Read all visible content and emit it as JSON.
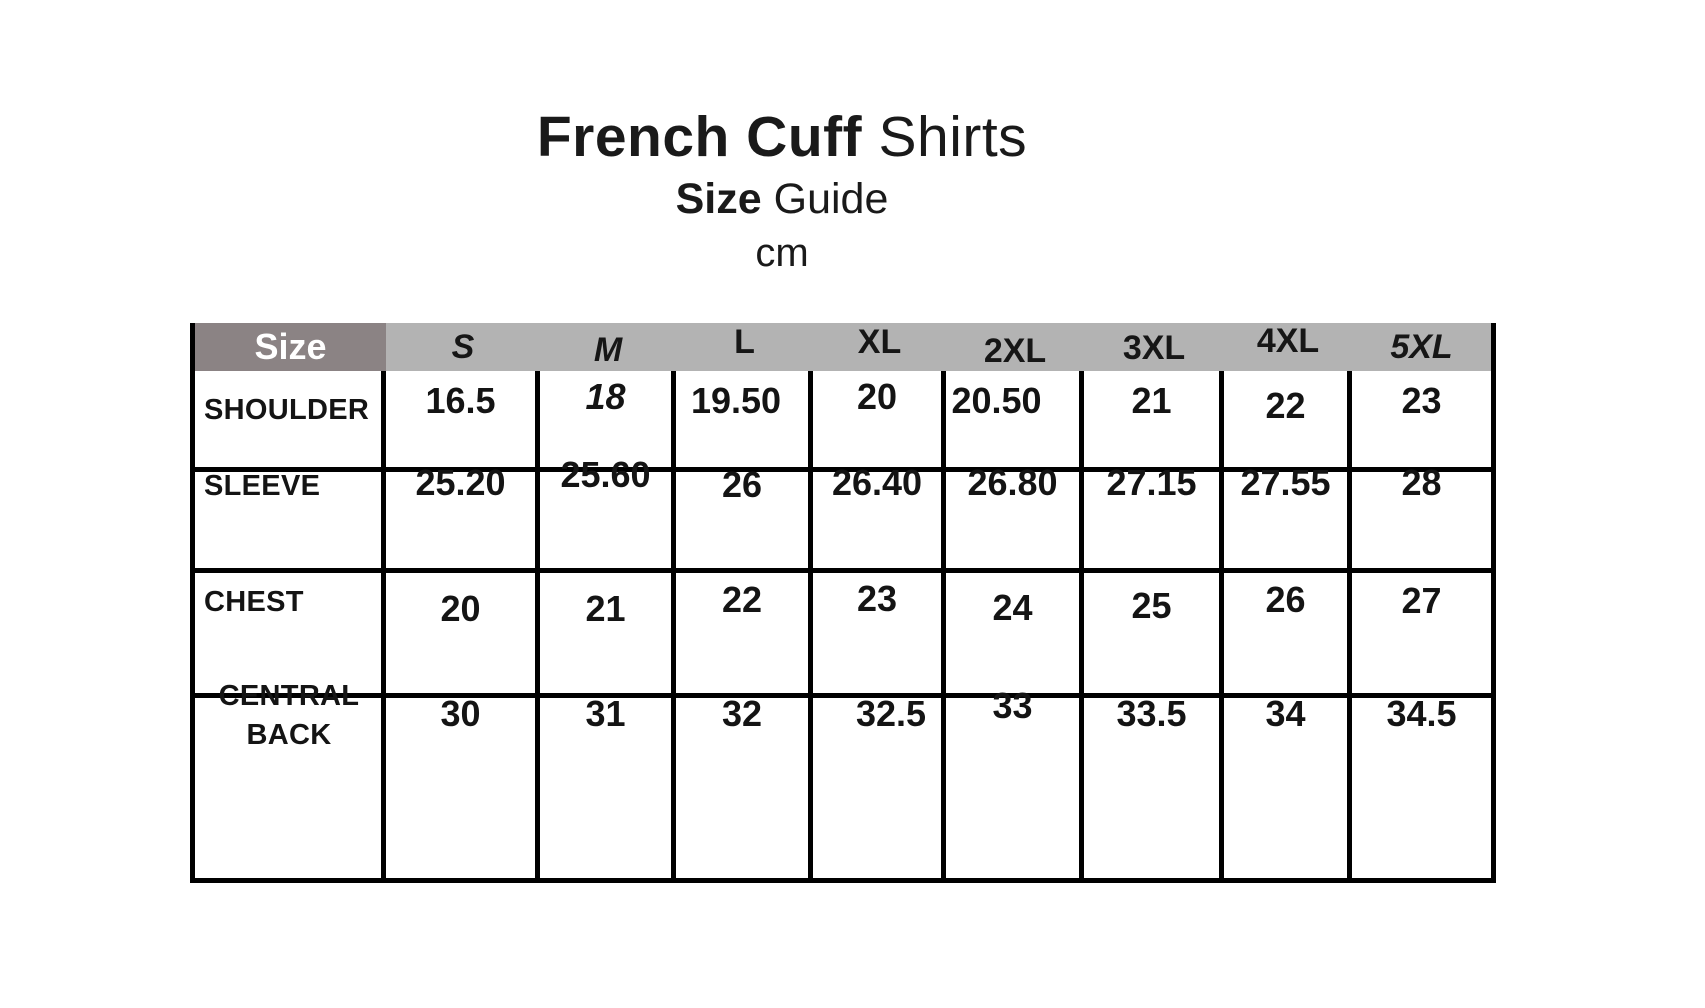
{
  "title": {
    "bold": "French Cuff",
    "regular": "Shirts"
  },
  "subtitle": {
    "bold": "Size",
    "regular": "Guide"
  },
  "unit": "cm",
  "table": {
    "corner_label": "Size",
    "columns": [
      "S",
      "M",
      "L",
      "XL",
      "2XL",
      "3XL",
      "4XL",
      "5XL"
    ],
    "rows": [
      {
        "label": "SHOULDER",
        "values": [
          "16.5",
          "18",
          "19.50",
          "20",
          "20.50",
          "21",
          "22",
          "23"
        ]
      },
      {
        "label": "SLEEVE",
        "values": [
          "25.20",
          "25.60",
          "26",
          "26.40",
          "26.80",
          "27.15",
          "27.55",
          "28"
        ]
      },
      {
        "label": "CHEST",
        "values": [
          "20",
          "21",
          "22",
          "23",
          "24",
          "25",
          "26",
          "27"
        ]
      },
      {
        "label": "CENTRAL BACK",
        "values": [
          "30",
          "31",
          "32",
          "32.5",
          "33",
          "33.5",
          "34",
          "34.5"
        ]
      }
    ]
  },
  "colors": {
    "corner_bg": "#8b8384",
    "header_bg": "#b3b3b3",
    "border": "#000000",
    "text": "#141414",
    "corner_text": "#ffffff",
    "background": "#ffffff"
  },
  "chart_data": {
    "type": "table",
    "title": "French Cuff Shirts",
    "subtitle": "Size Guide",
    "unit": "cm",
    "columns": [
      "Size",
      "S",
      "M",
      "L",
      "XL",
      "2XL",
      "3XL",
      "4XL",
      "5XL"
    ],
    "rows": [
      [
        "SHOULDER",
        "16.5",
        "18",
        "19.50",
        "20",
        "20.50",
        "21",
        "22",
        "23"
      ],
      [
        "SLEEVE",
        "25.20",
        "25.60",
        "26",
        "26.40",
        "26.80",
        "27.15",
        "27.55",
        "28"
      ],
      [
        "CHEST",
        "20",
        "21",
        "22",
        "23",
        "24",
        "25",
        "26",
        "27"
      ],
      [
        "CENTRAL BACK",
        "30",
        "31",
        "32",
        "32.5",
        "33",
        "33.5",
        "34",
        "34.5"
      ]
    ],
    "layout": {
      "header_fill": "#b3b3b3",
      "corner_fill": "#8b8384",
      "grid": "on"
    }
  }
}
